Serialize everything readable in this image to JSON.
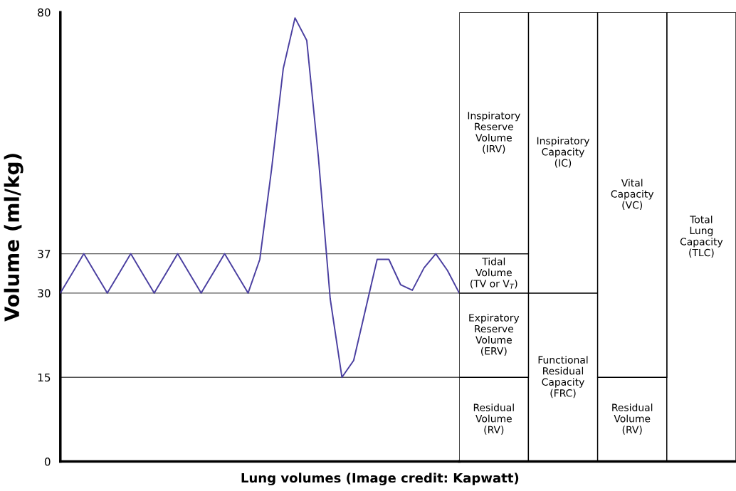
{
  "chart_data": [
    {
      "type": "line",
      "xlabel": "Lung volumes (Image credit: Kapwatt)",
      "ylabel": "Volume (ml/kg)",
      "categories": [
        null,
        null,
        null,
        null,
        null,
        null,
        null,
        null,
        null,
        null,
        null,
        null,
        null,
        null,
        null,
        null,
        null,
        null,
        null,
        null,
        null,
        null,
        null,
        null,
        null,
        null,
        null,
        null,
        null,
        null,
        null,
        null,
        null,
        null,
        null
      ],
      "ylim": [
        0,
        80
      ],
      "yticks": [
        0,
        15,
        30,
        37,
        80
      ],
      "tick_labels": "y",
      "ref_lines": [
        {
          "axis": "y",
          "value": 15,
          "color": "#555555"
        },
        {
          "axis": "y",
          "value": 30,
          "color": "#555555"
        },
        {
          "axis": "y",
          "value": 37,
          "color": "#555555"
        }
      ],
      "series": [
        {
          "color": "#4a3fa0",
          "values": [
            30,
            33.5,
            37,
            33.5,
            30,
            33.5,
            37,
            33.5,
            30,
            33.5,
            37,
            33.5,
            30,
            33.5,
            37,
            33.5,
            30,
            36,
            52,
            70,
            79,
            75,
            54,
            29,
            15,
            18,
            27,
            36,
            36,
            31.5,
            30.5,
            34.5,
            37,
            34,
            30
          ]
        }
      ]
    },
    {
      "type": "bar",
      "stacked": true,
      "categories": [
        null,
        null,
        null,
        null
      ],
      "ylim": [
        0,
        80
      ],
      "tick_labels": false,
      "series": [
        {
          "color": "#ffffff",
          "values": [
            15,
            30,
            15,
            80
          ],
          "value_labels": [
            "Residual\nVolume\n(RV)",
            "Functional\nResidual\nCapacity\n(FRC)",
            "Residual\nVolume\n(RV)",
            "Total\nLung\nCapacity\n(TLC)"
          ]
        },
        {
          "color": "#ffffff",
          "values": [
            15,
            50,
            65,
            null
          ],
          "value_labels": [
            "Expiratory\nReserve\nVolume\n(ERV)",
            "Inspiratory\nCapacity\n(IC)",
            "Vital\nCapacity\n(VC)",
            null
          ]
        },
        {
          "color": "#ffffff",
          "values": [
            7,
            null,
            null,
            null
          ],
          "value_labels": [
            "Tidal\nVolume\n(TV or V$_{T}$)",
            null,
            null,
            null
          ]
        },
        {
          "color": "#ffffff",
          "values": [
            43,
            null,
            null,
            null
          ],
          "value_labels": [
            "Inspiratory\nReserve\nVolume\n(IRV)",
            null,
            null,
            null
          ]
        }
      ]
    }
  ]
}
